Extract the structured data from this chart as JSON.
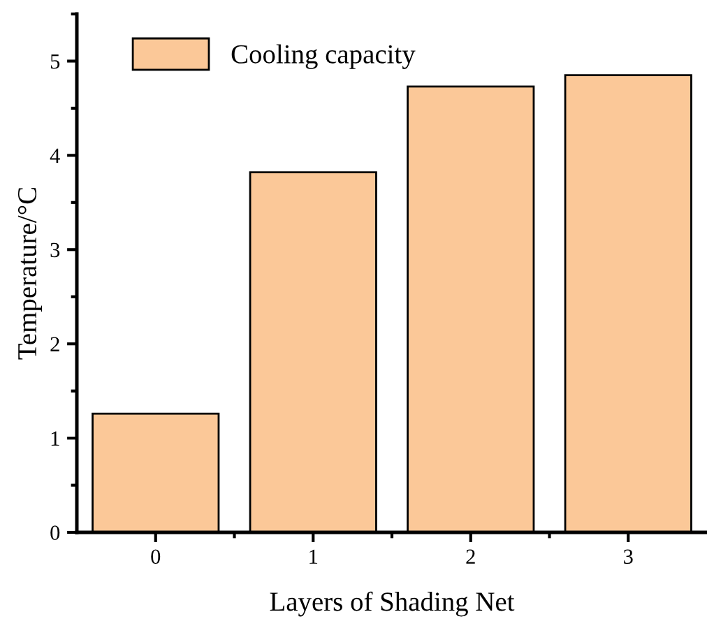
{
  "chart_data": {
    "type": "bar",
    "xlabel": "Layers of Shading Net",
    "ylabel": "Temperature/°C",
    "categories": [
      "0",
      "1",
      "2",
      "3"
    ],
    "series": [
      {
        "name": "Cooling capacity",
        "color": "#fbc898",
        "values": [
          1.26,
          3.82,
          4.73,
          4.85
        ]
      }
    ],
    "ylim": [
      0,
      5.5
    ],
    "yticks": [
      0,
      1,
      2,
      3,
      4,
      5
    ],
    "grid": false,
    "legend": "top left"
  }
}
